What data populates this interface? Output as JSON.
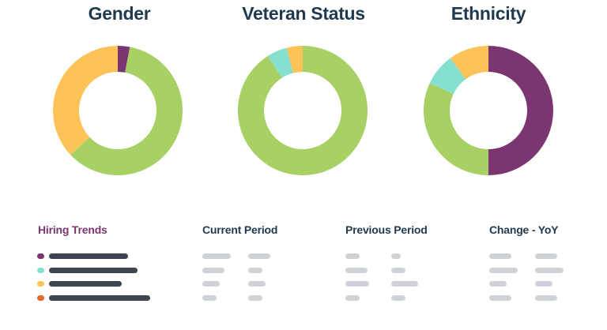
{
  "colors": {
    "purple": "#7b3571",
    "teal": "#86e0cf",
    "yellow": "#fdc359",
    "green": "#a7d165",
    "orange": "#e8682a",
    "title": "#1f3a4f",
    "placeholder_dark": "#3e4551",
    "placeholder_light": "#cfd2d7"
  },
  "charts": [
    {
      "title": "Gender",
      "chart_data": {
        "type": "pie",
        "title": "Gender",
        "slices": [
          {
            "color": "#7b3571",
            "value": 3
          },
          {
            "color": "#a7d165",
            "value": 60
          },
          {
            "color": "#fdc359",
            "value": 37
          }
        ]
      }
    },
    {
      "title": "Veteran Status",
      "chart_data": {
        "type": "pie",
        "title": "Veteran Status",
        "slices": [
          {
            "color": "#a7d165",
            "value": 91
          },
          {
            "color": "#86e0cf",
            "value": 5
          },
          {
            "color": "#fdc359",
            "value": 4
          }
        ]
      }
    },
    {
      "title": "Ethnicity",
      "chart_data": {
        "type": "pie",
        "title": "Ethnicity",
        "slices": [
          {
            "color": "#7b3571",
            "value": 50
          },
          {
            "color": "#a7d165",
            "value": 32
          },
          {
            "color": "#86e0cf",
            "value": 8
          },
          {
            "color": "#fdc359",
            "value": 10
          }
        ]
      }
    }
  ],
  "table": {
    "headers": [
      "Hiring Trends",
      "Current Period",
      "Previous Period",
      "Change - YoY"
    ],
    "legend_colors": [
      "#7b3571",
      "#86e0cf",
      "#fdc359",
      "#e8682a"
    ]
  }
}
